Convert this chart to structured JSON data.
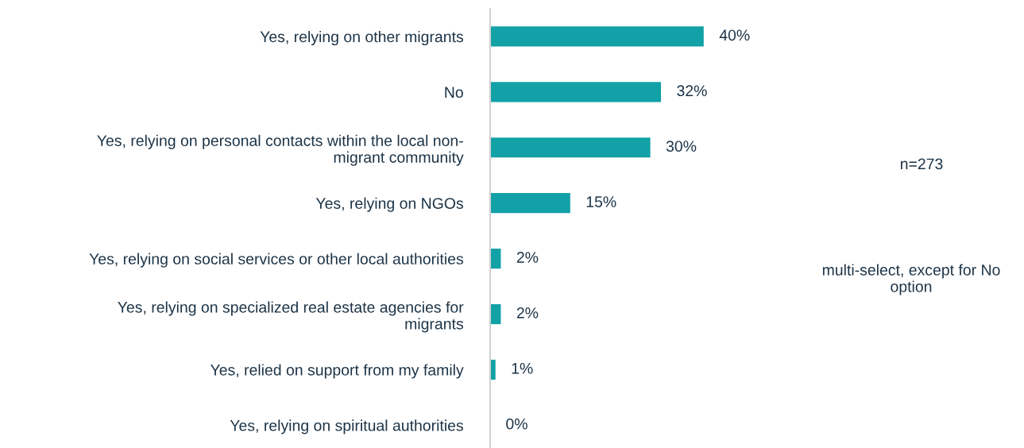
{
  "chart_data": {
    "type": "bar",
    "orientation": "horizontal",
    "categories": [
      "Yes, relying on other migrants",
      "No",
      "Yes, relying on personal contacts within the local non-\nmigrant community",
      "Yes, relying on NGOs",
      "Yes, relying on social services or other local authorities",
      "Yes, relying on specialized real estate agencies for\nmigrants",
      "Yes, relied on support from my family",
      "Yes, relying on spiritual authorities"
    ],
    "values": [
      40,
      32,
      30,
      15,
      2,
      2,
      1,
      0
    ],
    "value_labels": [
      "40%",
      "32%",
      "30%",
      "15%",
      "2%",
      "2%",
      "1%",
      "0%"
    ],
    "color": "#11a1a6",
    "tick_labels": "y",
    "grid": false,
    "legend": false,
    "annotations": [
      "n=273",
      "multi-select, except for No\noption"
    ]
  }
}
